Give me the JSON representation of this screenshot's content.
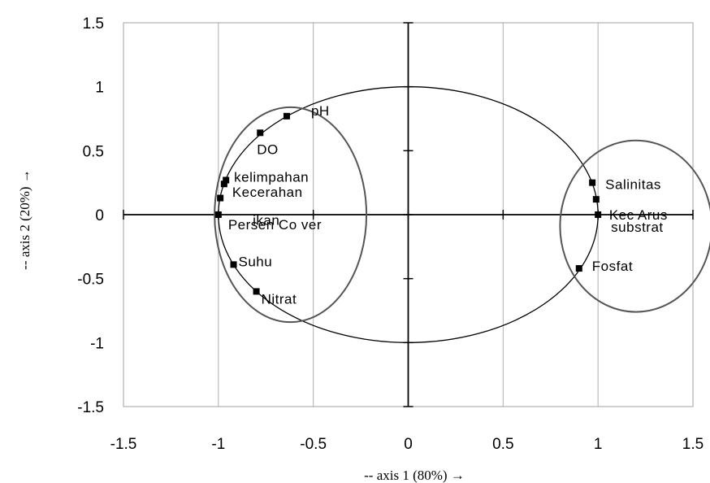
{
  "chart_data": {
    "type": "scatter",
    "xlabel": "-- axis 1 (80%) →",
    "ylabel": "-- axis 2 (20%) →",
    "xlim": [
      -1.5,
      1.5
    ],
    "ylim": [
      -1.5,
      1.5
    ],
    "xticks": [
      "-1.5",
      "-1",
      "-0.5",
      "0",
      "0.5",
      "1",
      "1.5"
    ],
    "yticks": [
      "1.5",
      "1",
      "0.5",
      "0",
      "-0.5",
      "-1",
      "-1.5"
    ],
    "grid": "vertical",
    "unit_circle": true,
    "points": [
      {
        "label": "pH",
        "x": -0.64,
        "y": 0.77
      },
      {
        "label": "DO",
        "x": -0.78,
        "y": 0.64
      },
      {
        "label": "kelimpahan",
        "x": -0.96,
        "y": 0.27
      },
      {
        "label": "Kecerahan",
        "x": -0.97,
        "y": 0.24
      },
      {
        "label": "ikan",
        "x": -0.99,
        "y": 0.13
      },
      {
        "label": "Persen Co ver",
        "x": -1.0,
        "y": 0.0
      },
      {
        "label": "Suhu",
        "x": -0.92,
        "y": -0.39
      },
      {
        "label": "Nitrat",
        "x": -0.8,
        "y": -0.6
      },
      {
        "label": "Salinitas",
        "x": 0.97,
        "y": 0.25
      },
      {
        "label": "Kec Arus",
        "x": 0.99,
        "y": 0.12
      },
      {
        "label": "substrat",
        "x": 1.0,
        "y": 0.0
      },
      {
        "label": "Fosfat",
        "x": 0.9,
        "y": -0.42
      }
    ],
    "groups": [
      {
        "cx": -0.62,
        "cy": 0.0,
        "rx": 0.4,
        "ry": 0.84
      },
      {
        "cx": 1.2,
        "cy": -0.09,
        "rx": 0.4,
        "ry": 0.67
      }
    ]
  }
}
